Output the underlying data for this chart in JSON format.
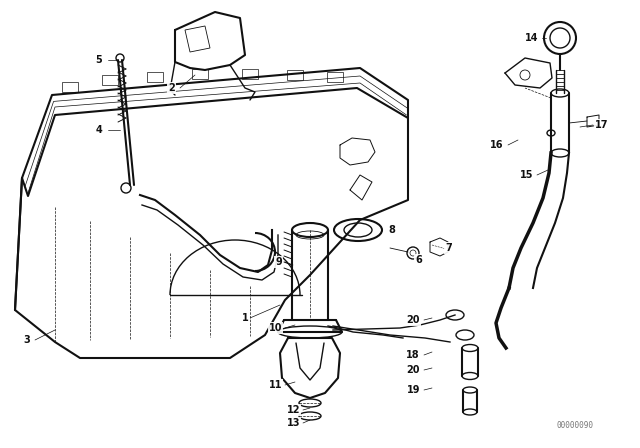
{
  "bg_color": "#ffffff",
  "line_color": "#111111",
  "label_color": "#000000",
  "watermark": "00000090",
  "figsize": [
    6.4,
    4.48
  ],
  "dpi": 100
}
